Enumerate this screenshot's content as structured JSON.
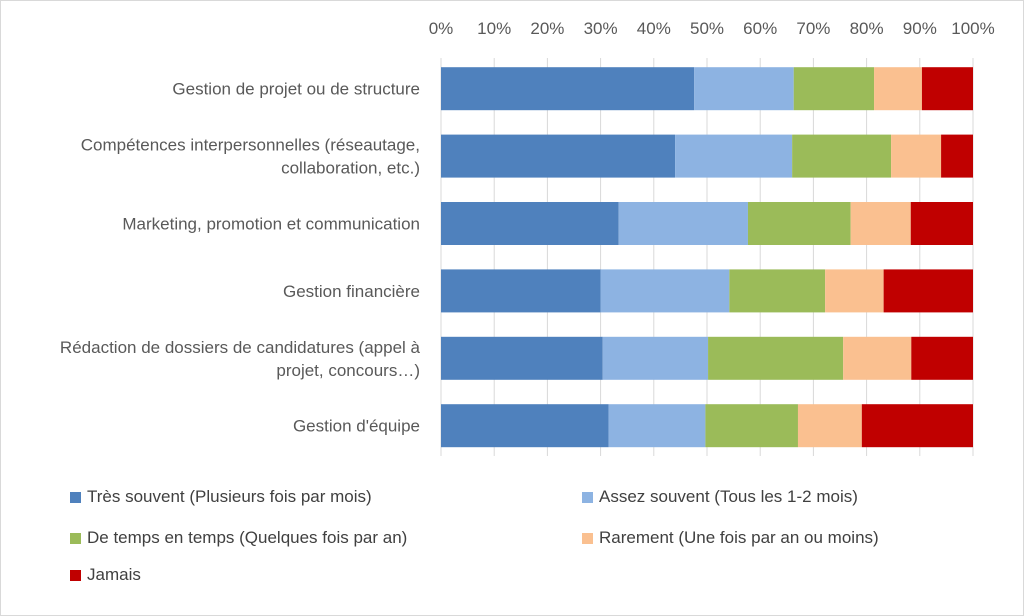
{
  "chart_data": {
    "type": "bar",
    "orientation": "horizontal",
    "stacked": "percent",
    "grid": true,
    "legend_position": "bottom",
    "xlim": [
      0,
      100
    ],
    "x_ticks": [
      "0%",
      "10%",
      "20%",
      "30%",
      "40%",
      "50%",
      "60%",
      "70%",
      "80%",
      "90%",
      "100%"
    ],
    "categories": [
      [
        "Gestion de projet ou de structure"
      ],
      [
        "Compétences interpersonnelles (réseautage,",
        "collaboration, etc.)"
      ],
      [
        "Marketing, promotion et communication"
      ],
      [
        "Gestion financière"
      ],
      [
        "Rédaction de dossiers de candidatures (appel à",
        "projet, concours…)"
      ],
      [
        "Gestion d'équipe"
      ]
    ],
    "series": [
      {
        "name": "Très souvent (Plusieurs fois par mois)",
        "color": "#4f81bd",
        "values": [
          47.6,
          44,
          33.4,
          30,
          30.4,
          31.5
        ]
      },
      {
        "name": "Assez souvent (Tous les 1-2 mois)",
        "color": "#8db3e2",
        "values": [
          18.7,
          22,
          24.3,
          24.2,
          19.8,
          18.2
        ]
      },
      {
        "name": "De temps en temps (Quelques fois par an)",
        "color": "#9bbb59",
        "values": [
          15.1,
          18.6,
          19.3,
          18,
          25.4,
          17.4
        ]
      },
      {
        "name": "Rarement (Une fois par an ou moins)",
        "color": "#fac090",
        "values": [
          9,
          9.4,
          11.3,
          11,
          12.8,
          12
        ]
      },
      {
        "name": "Jamais",
        "color": "#c00000",
        "values": [
          9.6,
          6,
          11.7,
          16.8,
          11.6,
          20.9
        ]
      }
    ]
  }
}
